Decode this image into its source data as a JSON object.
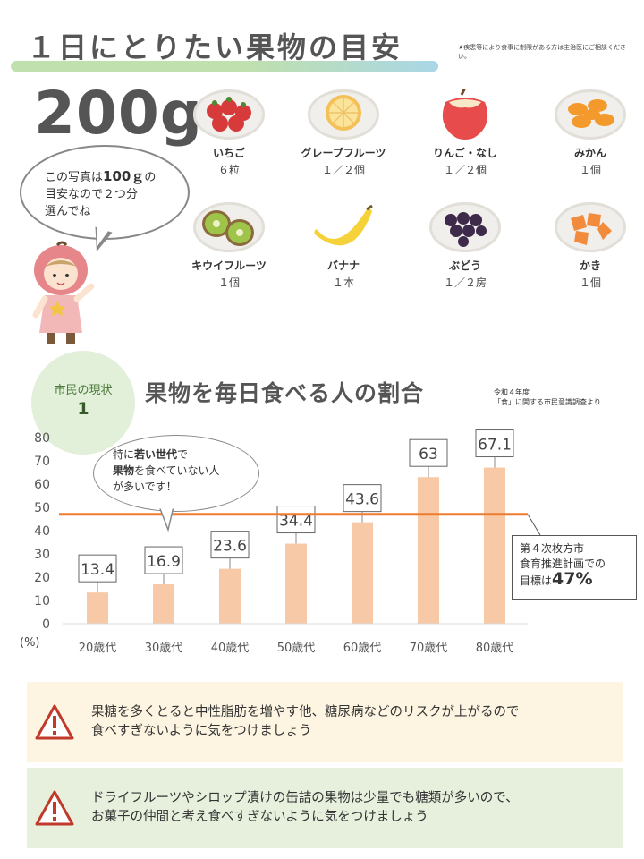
{
  "header": {
    "title": "１日にとりたい果物の目安",
    "note": "★疾患等により食事に制限がある方は主治医にご相談ください。",
    "amount": "200g"
  },
  "bubble": {
    "line1_pre": "この写真は",
    "line1_bold": "100ｇ",
    "line1_post": "の",
    "line2": "目安なので２つ分",
    "line3": "選んでね"
  },
  "fruits": [
    {
      "name": "いちご",
      "qty": "６粒"
    },
    {
      "name": "グレープフルーツ",
      "qty": "１／２個"
    },
    {
      "name": "りんご・なし",
      "qty": "１／２個"
    },
    {
      "name": "みかん",
      "qty": "１個"
    },
    {
      "name": "キウイフルーツ",
      "qty": "１個"
    },
    {
      "name": "バナナ",
      "qty": "１本"
    },
    {
      "name": "ぶどう",
      "qty": "１／２房"
    },
    {
      "name": "かき",
      "qty": "１個"
    }
  ],
  "section": {
    "circle_label": "市民の現状",
    "circle_num": "1",
    "title": "果物を毎日食べる人の割合",
    "source_line1": "令和４年度",
    "source_line2": "「食」に関する市民意識調査より"
  },
  "chart_bubble": {
    "p1": "特に",
    "b1": "若い世代",
    "p2": "で",
    "b2": "果物",
    "p3": "を食べていない人",
    "line3": "が多いです！"
  },
  "goal": {
    "line1": "第４次枚方市",
    "line2": "食育推進計画での",
    "line3_pre": "目標は",
    "line3_bold": "47%"
  },
  "chart_data": {
    "type": "bar",
    "categories": [
      "20歳代",
      "30歳代",
      "40歳代",
      "50歳代",
      "60歳代",
      "70歳代",
      "80歳代"
    ],
    "values": [
      13.4,
      16.9,
      23.6,
      34.4,
      43.6,
      63,
      67.1
    ],
    "value_labels": [
      "13.4",
      "16.9",
      "23.6",
      "34.4",
      "43.6",
      "63",
      "67.1"
    ],
    "ylabel": "(%)",
    "ylim": [
      0,
      80
    ],
    "yticks": [
      "0",
      "10",
      "20",
      "30",
      "40",
      "50",
      "60",
      "70",
      "80"
    ],
    "target_line": 47,
    "grid": false,
    "bar_color": "#f8c9a6",
    "target_color": "#ed7d31"
  },
  "warnings": [
    {
      "line1": "果糖を多くとると中性脂肪を増やす他、糖尿病などのリスクが上がるので",
      "line2": "食べすぎないように気をつけましょう"
    },
    {
      "line1": "ドライフルーツやシロップ漬けの缶詰の果物は少量でも糖類が多いので、",
      "line2": "お菓子の仲間と考え食べすぎないように気をつけましょう"
    }
  ],
  "icons": {
    "warning": "warning-triangle-icon",
    "warning_color": "#c0392b"
  }
}
